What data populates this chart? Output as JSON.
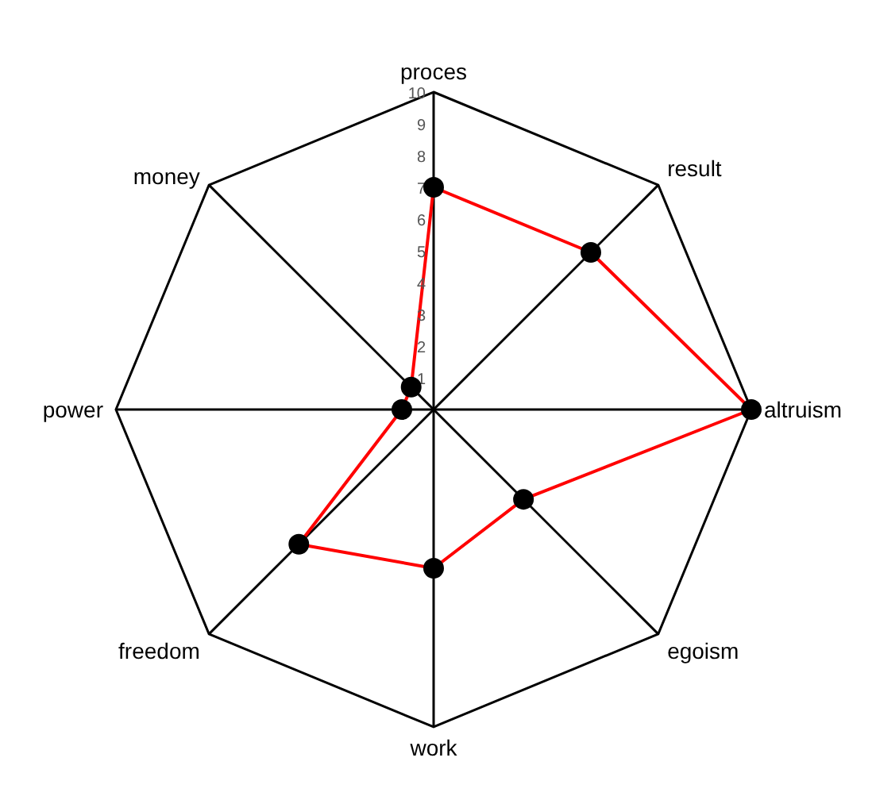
{
  "chart_data": {
    "type": "radar",
    "categories": [
      "proces",
      "result",
      "altruism",
      "egoism",
      "work",
      "freedom",
      "power",
      "money"
    ],
    "series": [
      {
        "color": "#ff0000",
        "values": [
          7,
          7,
          10,
          4,
          5,
          6,
          1,
          1
        ]
      }
    ],
    "ylim": [
      0,
      10
    ],
    "yticks": [
      1,
      2,
      3,
      4,
      5,
      6,
      7,
      8,
      9,
      10
    ],
    "grid": true,
    "marker": "circle",
    "legend": false
  }
}
